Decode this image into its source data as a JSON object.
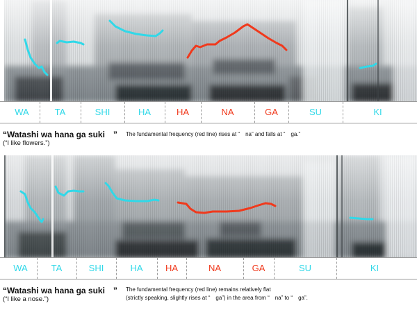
{
  "colors": {
    "low_pitch": "#31d8e8",
    "high_pitch": "#f0391c",
    "divider": "#9a9a9a"
  },
  "panels": [
    {
      "syllables": [
        {
          "text": "WA",
          "color": "#31d8e8"
        },
        {
          "text": "TA",
          "color": "#31d8e8"
        },
        {
          "text": "SHI",
          "color": "#31d8e8"
        },
        {
          "text": "HA",
          "color": "#31d8e8"
        },
        {
          "text": "HA",
          "color": "#f0391c"
        },
        {
          "text": "NA",
          "color": "#f0391c"
        },
        {
          "text": "GA",
          "color": "#f0391c"
        },
        {
          "text": "SU",
          "color": "#31d8e8"
        },
        {
          "text": "KI",
          "color": "#31d8e8"
        }
      ],
      "sentence": "“Watashi wa hana ga suki　”",
      "gloss": "(“I like flowers.”)",
      "note_lines": [
        "The fundamental frequency (red line) rises at “　na” and falls at “　ga.”"
      ]
    },
    {
      "syllables": [
        {
          "text": "WA",
          "color": "#31d8e8"
        },
        {
          "text": "TA",
          "color": "#31d8e8"
        },
        {
          "text": "SHI",
          "color": "#31d8e8"
        },
        {
          "text": "HA",
          "color": "#31d8e8"
        },
        {
          "text": "HA",
          "color": "#f0391c"
        },
        {
          "text": "NA",
          "color": "#f0391c"
        },
        {
          "text": "GA",
          "color": "#f0391c"
        },
        {
          "text": "SU",
          "color": "#31d8e8"
        },
        {
          "text": "KI",
          "color": "#31d8e8"
        }
      ],
      "sentence": "“Watashi wa hana ga suki　”",
      "gloss": "(“I like a nose.”)",
      "note_lines": [
        "The fundamental frequency (red line) remains relatively flat",
        "(strictly speaking, slightly rises at “　ga”) in the area from “　na” to “　ga”."
      ]
    }
  ]
}
